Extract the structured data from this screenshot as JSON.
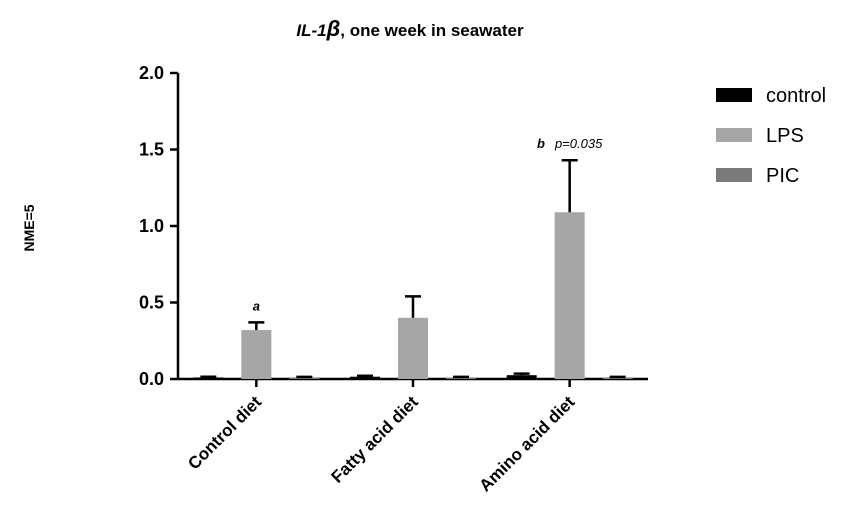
{
  "chart_data": {
    "type": "bar",
    "title_prefix": "IL-1",
    "title_suffix": ", one week in seawater",
    "ylabel": "NME=5",
    "xlabel": "",
    "ylim": [
      0,
      2.0
    ],
    "yticks": [
      "0.0",
      "0.5",
      "1.0",
      "1.5",
      "2.0"
    ],
    "categories": [
      "Control diet",
      "Fatty acid diet",
      "Amino acid diet"
    ],
    "legend_position": "right",
    "series": [
      {
        "name": "control",
        "color": "#000000",
        "values": [
          0.01,
          0.015,
          0.025
        ],
        "errors": [
          0.005,
          0.006,
          0.01
        ]
      },
      {
        "name": "LPS",
        "color": "#a6a6a6",
        "values": [
          0.32,
          0.4,
          1.09
        ],
        "errors": [
          0.05,
          0.14,
          0.34
        ]
      },
      {
        "name": "PIC",
        "color": "#7a7a7a",
        "values": [
          0.01,
          0.01,
          0.01
        ],
        "errors": [
          0.004,
          0.004,
          0.004
        ]
      }
    ],
    "annotations": [
      {
        "category": "Control diet",
        "series": "LPS",
        "letter": "a",
        "text": ""
      },
      {
        "category": "Amino acid diet",
        "series": "LPS",
        "letter": "b",
        "text": "p=0.035"
      }
    ]
  }
}
